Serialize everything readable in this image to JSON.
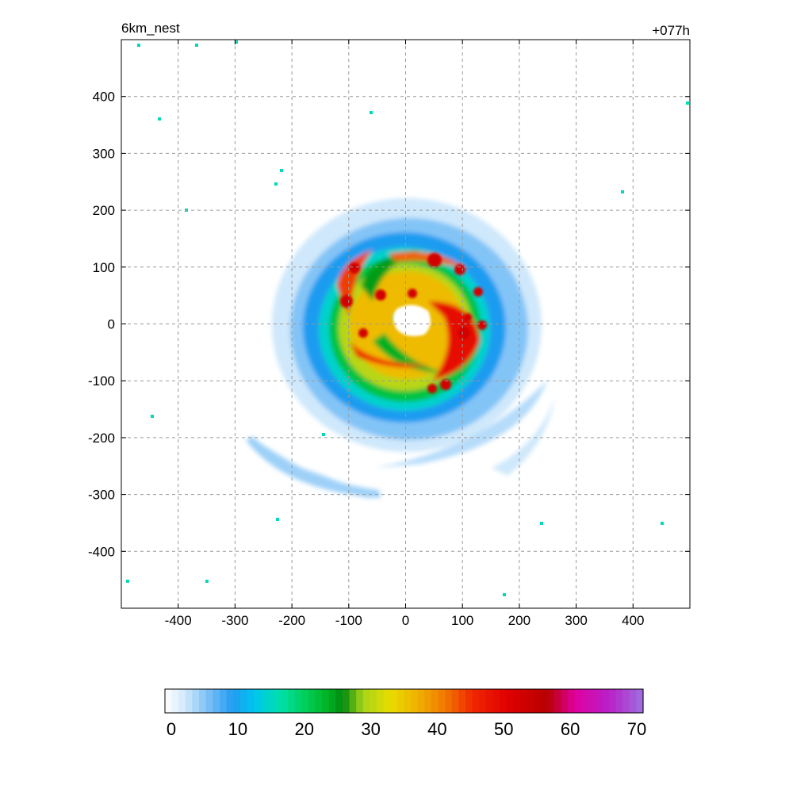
{
  "chart_data": {
    "type": "heatmap",
    "title_left": "6km_nest",
    "title_right": "+077h",
    "xlabel": "",
    "ylabel": "",
    "xlim": [
      -500,
      500
    ],
    "ylim": [
      -500,
      500
    ],
    "x_ticks": [
      -400,
      -300,
      -200,
      -100,
      0,
      100,
      200,
      300,
      400
    ],
    "y_ticks": [
      400,
      300,
      200,
      100,
      0,
      -100,
      -200,
      -300,
      -400
    ],
    "grid": true,
    "colorbar": {
      "range": [
        0,
        70
      ],
      "ticks": [
        0,
        10,
        20,
        30,
        40,
        50,
        60,
        70
      ],
      "stops": [
        {
          "value": 0,
          "color": "#ffffff"
        },
        {
          "value": 3,
          "color": "#cfe8fb"
        },
        {
          "value": 7,
          "color": "#6ab8f5"
        },
        {
          "value": 10,
          "color": "#1f9cf0"
        },
        {
          "value": 13,
          "color": "#00c4f0"
        },
        {
          "value": 17,
          "color": "#00e0a8"
        },
        {
          "value": 21,
          "color": "#00cc50"
        },
        {
          "value": 24,
          "color": "#00b020"
        },
        {
          "value": 26,
          "color": "#008a10"
        },
        {
          "value": 29,
          "color": "#a8d418"
        },
        {
          "value": 33,
          "color": "#e8dc00"
        },
        {
          "value": 37,
          "color": "#f0b000"
        },
        {
          "value": 41,
          "color": "#f07800"
        },
        {
          "value": 45,
          "color": "#f02800"
        },
        {
          "value": 50,
          "color": "#e00000"
        },
        {
          "value": 56,
          "color": "#b80000"
        },
        {
          "value": 60,
          "color": "#e000a0"
        },
        {
          "value": 65,
          "color": "#b820c8"
        },
        {
          "value": 70,
          "color": "#a070e0"
        }
      ]
    },
    "features": {
      "eye_center": [
        -5,
        5
      ],
      "eye_radius_km": 28,
      "eyewall_radius_km": 75,
      "max_value_region": "south-east of eye",
      "outer_extent_km": 230
    }
  }
}
